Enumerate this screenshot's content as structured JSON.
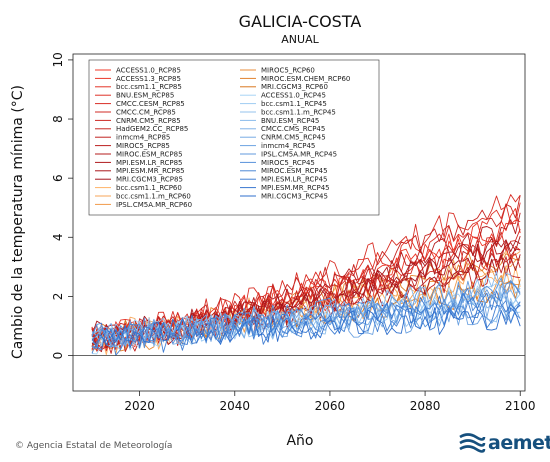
{
  "chart_data": {
    "type": "line",
    "title": "GALICIA-COSTA",
    "subtitle": "ANUAL",
    "xlabel": "Año",
    "ylabel": "Cambio de la temperatura mínima (°C)",
    "xlim": [
      2006,
      2101
    ],
    "ylim": [
      -1.2,
      10.2
    ],
    "x_ticks": [
      2020,
      2040,
      2060,
      2080,
      2100
    ],
    "y_ticks": [
      0,
      2,
      4,
      6,
      8,
      10
    ],
    "x_range": [
      2010,
      2100
    ],
    "legend_position": "top-left",
    "zero_line": true,
    "grid": false,
    "colors": {
      "rcp85_start": "#f03a2a",
      "rcp85_end": "#a3141b",
      "rcp60_start": "#ffb266",
      "rcp60_end": "#d9761f",
      "rcp45_start": "#a8d4f5",
      "rcp45_end": "#2f6fcc"
    },
    "series": [
      {
        "name": "ACCESS1.0_RCP85",
        "scenario": "rcp85",
        "end": 4.2
      },
      {
        "name": "ACCESS1.3_RCP85",
        "scenario": "rcp85",
        "end": 4.6
      },
      {
        "name": "bcc.csm1.1_RCP85",
        "scenario": "rcp85",
        "end": 3.6
      },
      {
        "name": "BNU.ESM_RCP85",
        "scenario": "rcp85",
        "end": 4.9
      },
      {
        "name": "CMCC.CESM_RCP85",
        "scenario": "rcp85",
        "end": 5.5
      },
      {
        "name": "CMCC.CM_RCP85",
        "scenario": "rcp85",
        "end": 4.0
      },
      {
        "name": "CNRM.CM5_RCP85",
        "scenario": "rcp85",
        "end": 3.4
      },
      {
        "name": "HadGEM2.CC_RCP85",
        "scenario": "rcp85",
        "end": 5.0
      },
      {
        "name": "inmcm4_RCP85",
        "scenario": "rcp85",
        "end": 3.1
      },
      {
        "name": "MIROC5_RCP85",
        "scenario": "rcp85",
        "end": 3.8
      },
      {
        "name": "MIROC.ESM_RCP85",
        "scenario": "rcp85",
        "end": 4.4
      },
      {
        "name": "MPI.ESM.LR_RCP85",
        "scenario": "rcp85",
        "end": 3.9
      },
      {
        "name": "MPI.ESM.MR_RCP85",
        "scenario": "rcp85",
        "end": 3.7
      },
      {
        "name": "MRI.CGCM3_RCP85",
        "scenario": "rcp85",
        "end": 3.3
      },
      {
        "name": "bcc.csm1.1_RCP60",
        "scenario": "rcp60",
        "end": 2.6
      },
      {
        "name": "bcc.csm1.1.m_RCP60",
        "scenario": "rcp60",
        "end": 3.2
      },
      {
        "name": "IPSL.CM5A.MR_RCP60",
        "scenario": "rcp60",
        "end": 3.0
      },
      {
        "name": "MIROC5_RCP60",
        "scenario": "rcp60",
        "end": 2.4
      },
      {
        "name": "MIROC.ESM.CHEM_RCP60",
        "scenario": "rcp60",
        "end": 3.5
      },
      {
        "name": "MRI.CGCM3_RCP60",
        "scenario": "rcp60",
        "end": 2.2
      },
      {
        "name": "ACCESS1.0_RCP45",
        "scenario": "rcp45",
        "end": 2.2
      },
      {
        "name": "bcc.csm1.1_RCP45",
        "scenario": "rcp45",
        "end": 1.9
      },
      {
        "name": "bcc.csm1.1.m_RCP45",
        "scenario": "rcp45",
        "end": 1.6
      },
      {
        "name": "BNU.ESM_RCP45",
        "scenario": "rcp45",
        "end": 2.5
      },
      {
        "name": "CMCC.CMS_RCP45",
        "scenario": "rcp45",
        "end": 2.0
      },
      {
        "name": "CNRM.CM5_RCP45",
        "scenario": "rcp45",
        "end": 1.8
      },
      {
        "name": "inmcm4_RCP45",
        "scenario": "rcp45",
        "end": 1.4
      },
      {
        "name": "IPSL.CM5A.MR_RCP45",
        "scenario": "rcp45",
        "end": 2.3
      },
      {
        "name": "MIROC5_RCP45",
        "scenario": "rcp45",
        "end": 1.7
      },
      {
        "name": "MIROC.ESM_RCP45",
        "scenario": "rcp45",
        "end": 2.1
      },
      {
        "name": "MPI.ESM.LR_RCP45",
        "scenario": "rcp45",
        "end": 1.5
      },
      {
        "name": "MPI.ESM.MR_RCP45",
        "scenario": "rcp45",
        "end": 1.9
      },
      {
        "name": "MRI.CGCM3_RCP45",
        "scenario": "rcp45",
        "end": 1.3
      }
    ]
  },
  "footer": {
    "credit": "© Agencia Estatal de Meteorología",
    "brand": "aemet"
  }
}
